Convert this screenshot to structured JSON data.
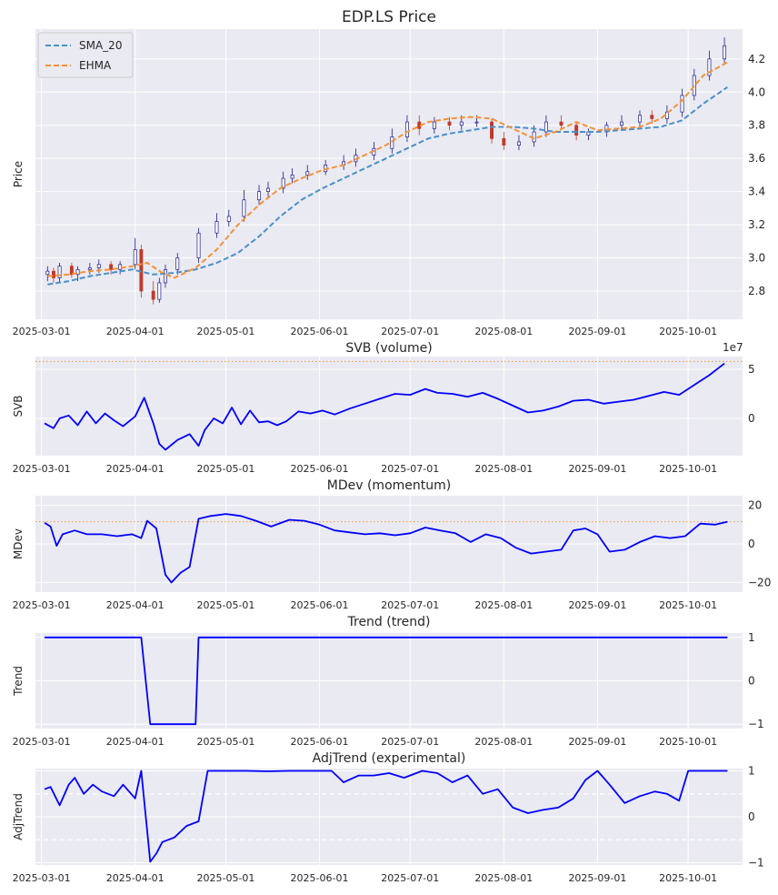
{
  "chart_data": [
    {
      "type": "line",
      "title": "EDP.LS Price",
      "ylabel": "Price",
      "xlabel": "",
      "x_ticks": [
        "2025-03-01",
        "2025-04-01",
        "2025-05-01",
        "2025-06-01",
        "2025-07-01",
        "2025-08-01",
        "2025-09-01",
        "2025-10-01"
      ],
      "y_ticks": [
        "2.8",
        "3.0",
        "3.2",
        "3.4",
        "3.6",
        "3.8",
        "4.0",
        "4.2"
      ],
      "ylim": [
        2.63,
        4.38
      ],
      "xlim": [
        "2025-02-27",
        "2025-10-19"
      ],
      "grid": true,
      "legend": "top-left",
      "candles": {
        "up_color": "#1a1a8c",
        "down_color": "#c0392b",
        "dates": [
          "2025-03-03",
          "2025-03-05",
          "2025-03-07",
          "2025-03-11",
          "2025-03-13",
          "2025-03-17",
          "2025-03-20",
          "2025-03-24",
          "2025-03-27",
          "2025-04-01",
          "2025-04-03",
          "2025-04-07",
          "2025-04-09",
          "2025-04-11",
          "2025-04-15",
          "2025-04-22",
          "2025-04-28",
          "2025-05-02",
          "2025-05-07",
          "2025-05-12",
          "2025-05-15",
          "2025-05-20",
          "2025-05-23",
          "2025-05-28",
          "2025-06-03",
          "2025-06-09",
          "2025-06-13",
          "2025-06-19",
          "2025-06-25",
          "2025-06-30",
          "2025-07-04",
          "2025-07-09",
          "2025-07-14",
          "2025-07-18",
          "2025-07-23",
          "2025-07-28",
          "2025-08-01",
          "2025-08-06",
          "2025-08-11",
          "2025-08-15",
          "2025-08-20",
          "2025-08-25",
          "2025-08-29",
          "2025-09-04",
          "2025-09-09",
          "2025-09-15",
          "2025-09-19",
          "2025-09-24",
          "2025-09-29",
          "2025-10-03",
          "2025-10-08",
          "2025-10-13"
        ],
        "open": [
          2.9,
          2.92,
          2.88,
          2.95,
          2.9,
          2.93,
          2.94,
          2.96,
          2.93,
          2.96,
          3.05,
          2.8,
          2.75,
          2.85,
          2.93,
          3.0,
          3.15,
          3.22,
          3.25,
          3.35,
          3.4,
          3.42,
          3.48,
          3.5,
          3.52,
          3.56,
          3.58,
          3.62,
          3.66,
          3.73,
          3.82,
          3.78,
          3.82,
          3.8,
          3.82,
          3.82,
          3.72,
          3.68,
          3.7,
          3.76,
          3.82,
          3.8,
          3.74,
          3.76,
          3.8,
          3.82,
          3.86,
          3.84,
          3.88,
          3.98,
          4.1,
          4.2
        ],
        "close": [
          2.92,
          2.88,
          2.95,
          2.9,
          2.93,
          2.94,
          2.96,
          2.93,
          2.96,
          3.05,
          2.8,
          2.75,
          2.85,
          2.93,
          3.0,
          3.15,
          3.22,
          3.25,
          3.35,
          3.4,
          3.42,
          3.48,
          3.5,
          3.52,
          3.56,
          3.58,
          3.62,
          3.66,
          3.73,
          3.82,
          3.78,
          3.82,
          3.8,
          3.82,
          3.82,
          3.72,
          3.68,
          3.7,
          3.76,
          3.82,
          3.8,
          3.74,
          3.76,
          3.8,
          3.82,
          3.86,
          3.84,
          3.88,
          3.98,
          4.1,
          4.2,
          4.28
        ],
        "high": [
          2.95,
          2.94,
          2.97,
          2.97,
          2.95,
          2.97,
          2.99,
          2.98,
          2.98,
          3.12,
          3.08,
          2.86,
          2.88,
          2.96,
          3.03,
          3.18,
          3.27,
          3.29,
          3.41,
          3.44,
          3.46,
          3.52,
          3.54,
          3.56,
          3.59,
          3.62,
          3.66,
          3.7,
          3.78,
          3.86,
          3.86,
          3.85,
          3.85,
          3.86,
          3.86,
          3.84,
          3.76,
          3.74,
          3.8,
          3.86,
          3.86,
          3.82,
          3.78,
          3.82,
          3.86,
          3.89,
          3.89,
          3.92,
          4.02,
          4.14,
          4.25,
          4.33
        ],
        "low": [
          2.86,
          2.85,
          2.85,
          2.88,
          2.86,
          2.9,
          2.91,
          2.9,
          2.9,
          2.93,
          2.76,
          2.72,
          2.73,
          2.82,
          2.9,
          2.97,
          3.12,
          3.19,
          3.22,
          3.32,
          3.37,
          3.39,
          3.45,
          3.47,
          3.5,
          3.53,
          3.55,
          3.59,
          3.63,
          3.7,
          3.74,
          3.75,
          3.77,
          3.77,
          3.79,
          3.69,
          3.65,
          3.65,
          3.67,
          3.73,
          3.77,
          3.71,
          3.71,
          3.73,
          3.77,
          3.79,
          3.81,
          3.81,
          3.85,
          3.95,
          4.07,
          4.17
        ]
      },
      "series": [
        {
          "name": "SMA_20",
          "color": "#4a90c8",
          "dash": true,
          "x": [
            "2025-03-03",
            "2025-03-10",
            "2025-03-17",
            "2025-03-24",
            "2025-03-31",
            "2025-04-07",
            "2025-04-14",
            "2025-04-21",
            "2025-04-28",
            "2025-05-05",
            "2025-05-12",
            "2025-05-19",
            "2025-05-26",
            "2025-06-02",
            "2025-06-09",
            "2025-06-16",
            "2025-06-23",
            "2025-06-30",
            "2025-07-07",
            "2025-07-14",
            "2025-07-21",
            "2025-07-28",
            "2025-08-04",
            "2025-08-11",
            "2025-08-18",
            "2025-08-25",
            "2025-09-01",
            "2025-09-08",
            "2025-09-15",
            "2025-09-22",
            "2025-09-29",
            "2025-10-06",
            "2025-10-14"
          ],
          "y": [
            2.84,
            2.86,
            2.89,
            2.91,
            2.93,
            2.9,
            2.91,
            2.93,
            2.97,
            3.03,
            3.13,
            3.25,
            3.35,
            3.42,
            3.48,
            3.54,
            3.6,
            3.66,
            3.72,
            3.75,
            3.77,
            3.79,
            3.79,
            3.78,
            3.76,
            3.76,
            3.76,
            3.77,
            3.78,
            3.79,
            3.83,
            3.93,
            4.03
          ]
        },
        {
          "name": "EHMA",
          "color": "#f39237",
          "dash": true,
          "x": [
            "2025-03-03",
            "2025-03-10",
            "2025-03-17",
            "2025-03-24",
            "2025-03-31",
            "2025-04-05",
            "2025-04-10",
            "2025-04-14",
            "2025-04-21",
            "2025-04-28",
            "2025-05-05",
            "2025-05-12",
            "2025-05-19",
            "2025-05-26",
            "2025-06-02",
            "2025-06-09",
            "2025-06-16",
            "2025-06-23",
            "2025-06-30",
            "2025-07-07",
            "2025-07-14",
            "2025-07-21",
            "2025-07-28",
            "2025-08-04",
            "2025-08-11",
            "2025-08-18",
            "2025-08-25",
            "2025-09-01",
            "2025-09-08",
            "2025-09-15",
            "2025-09-22",
            "2025-09-29",
            "2025-10-06",
            "2025-10-14"
          ],
          "y": [
            2.89,
            2.9,
            2.92,
            2.93,
            2.95,
            2.97,
            2.91,
            2.88,
            2.94,
            3.05,
            3.2,
            3.32,
            3.42,
            3.48,
            3.53,
            3.56,
            3.62,
            3.68,
            3.76,
            3.82,
            3.84,
            3.85,
            3.84,
            3.78,
            3.72,
            3.76,
            3.82,
            3.77,
            3.78,
            3.79,
            3.84,
            3.95,
            4.1,
            4.18
          ]
        }
      ]
    },
    {
      "type": "line",
      "title": "SVB (volume)",
      "ylabel": "SVB",
      "y_ticks": [
        "0",
        "5"
      ],
      "offset_text": "1e7",
      "ylim": [
        -3.8,
        6.3
      ],
      "grid": true,
      "reference_line": {
        "y": 5.8,
        "color": "#f39237",
        "style": "dotted"
      },
      "series": [
        {
          "name": "",
          "color": "#0000ff",
          "x": [
            "2025-03-02",
            "2025-03-05",
            "2025-03-07",
            "2025-03-10",
            "2025-03-13",
            "2025-03-16",
            "2025-03-19",
            "2025-03-22",
            "2025-03-25",
            "2025-03-28",
            "2025-04-01",
            "2025-04-04",
            "2025-04-07",
            "2025-04-09",
            "2025-04-11",
            "2025-04-15",
            "2025-04-19",
            "2025-04-22",
            "2025-04-24",
            "2025-04-27",
            "2025-04-30",
            "2025-05-03",
            "2025-05-06",
            "2025-05-09",
            "2025-05-12",
            "2025-05-15",
            "2025-05-18",
            "2025-05-21",
            "2025-05-25",
            "2025-05-29",
            "2025-06-02",
            "2025-06-06",
            "2025-06-11",
            "2025-06-16",
            "2025-06-21",
            "2025-06-26",
            "2025-07-01",
            "2025-07-06",
            "2025-07-10",
            "2025-07-15",
            "2025-07-20",
            "2025-07-25",
            "2025-07-30",
            "2025-08-04",
            "2025-08-09",
            "2025-08-14",
            "2025-08-19",
            "2025-08-24",
            "2025-08-29",
            "2025-09-03",
            "2025-09-08",
            "2025-09-13",
            "2025-09-18",
            "2025-09-23",
            "2025-09-28",
            "2025-10-03",
            "2025-10-08",
            "2025-10-13"
          ],
          "y": [
            -0.5,
            -1.0,
            0.0,
            0.3,
            -0.7,
            0.7,
            -0.5,
            0.5,
            -0.2,
            -0.8,
            0.2,
            2.1,
            -0.5,
            -2.6,
            -3.2,
            -2.2,
            -1.6,
            -2.8,
            -1.2,
            0.0,
            -0.5,
            1.1,
            -0.6,
            0.8,
            -0.4,
            -0.3,
            -0.7,
            -0.3,
            0.7,
            0.5,
            0.8,
            0.4,
            1.0,
            1.5,
            2.0,
            2.5,
            2.4,
            3.0,
            2.6,
            2.5,
            2.2,
            2.6,
            2.0,
            1.3,
            0.6,
            0.8,
            1.2,
            1.8,
            1.9,
            1.5,
            1.7,
            1.9,
            2.3,
            2.7,
            2.4,
            3.4,
            4.4,
            5.6
          ]
        }
      ]
    },
    {
      "type": "line",
      "title": "MDev (momentum)",
      "ylabel": "MDev",
      "y_ticks": [
        "−20",
        "0",
        "20"
      ],
      "ylim": [
        -25,
        25
      ],
      "grid": true,
      "reference_line": {
        "y": 11.5,
        "color": "#f39237",
        "style": "dotted"
      },
      "series": [
        {
          "name": "",
          "color": "#0000ff",
          "x": [
            "2025-03-02",
            "2025-03-04",
            "2025-03-06",
            "2025-03-08",
            "2025-03-12",
            "2025-03-16",
            "2025-03-21",
            "2025-03-26",
            "2025-03-31",
            "2025-04-03",
            "2025-04-05",
            "2025-04-08",
            "2025-04-11",
            "2025-04-13",
            "2025-04-16",
            "2025-04-19",
            "2025-04-22",
            "2025-04-26",
            "2025-05-01",
            "2025-05-06",
            "2025-05-11",
            "2025-05-16",
            "2025-05-22",
            "2025-05-27",
            "2025-06-01",
            "2025-06-06",
            "2025-06-11",
            "2025-06-16",
            "2025-06-21",
            "2025-06-26",
            "2025-07-01",
            "2025-07-06",
            "2025-07-11",
            "2025-07-16",
            "2025-07-21",
            "2025-07-26",
            "2025-07-31",
            "2025-08-05",
            "2025-08-10",
            "2025-08-15",
            "2025-08-20",
            "2025-08-24",
            "2025-08-28",
            "2025-09-01",
            "2025-09-05",
            "2025-09-10",
            "2025-09-15",
            "2025-09-20",
            "2025-09-25",
            "2025-09-30",
            "2025-10-05",
            "2025-10-10",
            "2025-10-14"
          ],
          "y": [
            11,
            9,
            -1,
            5,
            7,
            5,
            5,
            4,
            5,
            3,
            12,
            8,
            -16,
            -20,
            -15,
            -12,
            13,
            14.5,
            15.5,
            14.5,
            12,
            9,
            12.5,
            12,
            10,
            7,
            6,
            5,
            5.5,
            4.5,
            5.5,
            8.5,
            7,
            5.5,
            1,
            5,
            3,
            -2,
            -5,
            -4,
            -3,
            7,
            8,
            5,
            -4,
            -3,
            1,
            4,
            3,
            4,
            10.5,
            10,
            11.5
          ]
        }
      ]
    },
    {
      "type": "line",
      "title": "Trend (trend)",
      "ylabel": "Trend",
      "y_ticks": [
        "−1",
        "0",
        "1"
      ],
      "ylim": [
        -1.1,
        1.1
      ],
      "grid": true,
      "series": [
        {
          "name": "",
          "color": "#0000ff",
          "x": [
            "2025-03-02",
            "2025-04-03",
            "2025-04-06",
            "2025-04-21",
            "2025-04-22",
            "2025-10-14"
          ],
          "y": [
            1,
            1,
            -1,
            -1,
            1,
            1
          ]
        }
      ]
    },
    {
      "type": "line",
      "title": "AdjTrend (experimental)",
      "ylabel": "AdjTrend",
      "y_ticks": [
        "−1",
        "0",
        "1"
      ],
      "ylim": [
        -1.05,
        1.05
      ],
      "grid": true,
      "reference_lines": [
        {
          "y": 0.5,
          "color": "#ffffff",
          "style": "dashed"
        },
        {
          "y": -0.5,
          "color": "#ffffff",
          "style": "dashed"
        }
      ],
      "series": [
        {
          "name": "",
          "color": "#0000ff",
          "x": [
            "2025-03-02",
            "2025-03-04",
            "2025-03-07",
            "2025-03-10",
            "2025-03-12",
            "2025-03-15",
            "2025-03-18",
            "2025-03-21",
            "2025-03-25",
            "2025-03-28",
            "2025-04-01",
            "2025-04-03",
            "2025-04-06",
            "2025-04-08",
            "2025-04-10",
            "2025-04-14",
            "2025-04-18",
            "2025-04-22",
            "2025-04-25",
            "2025-05-01",
            "2025-05-08",
            "2025-05-15",
            "2025-05-22",
            "2025-05-29",
            "2025-06-05",
            "2025-06-09",
            "2025-06-14",
            "2025-06-19",
            "2025-06-24",
            "2025-06-29",
            "2025-07-05",
            "2025-07-10",
            "2025-07-15",
            "2025-07-20",
            "2025-07-25",
            "2025-07-30",
            "2025-08-04",
            "2025-08-09",
            "2025-08-14",
            "2025-08-19",
            "2025-08-24",
            "2025-08-28",
            "2025-09-01",
            "2025-09-05",
            "2025-09-10",
            "2025-09-15",
            "2025-09-20",
            "2025-09-24",
            "2025-09-28",
            "2025-10-01",
            "2025-10-05",
            "2025-10-10",
            "2025-10-14"
          ],
          "y": [
            0.6,
            0.65,
            0.25,
            0.7,
            0.85,
            0.5,
            0.7,
            0.55,
            0.45,
            0.7,
            0.4,
            1.0,
            -0.98,
            -0.8,
            -0.55,
            -0.45,
            -0.2,
            -0.1,
            1.0,
            1.0,
            1.0,
            0.99,
            1.0,
            1.0,
            1.0,
            0.75,
            0.9,
            0.9,
            0.95,
            0.85,
            1.0,
            0.95,
            0.75,
            0.9,
            0.5,
            0.6,
            0.2,
            0.08,
            0.15,
            0.2,
            0.4,
            0.8,
            1.0,
            0.7,
            0.3,
            0.45,
            0.55,
            0.5,
            0.35,
            1.0,
            1.0,
            1.0,
            1.0
          ]
        }
      ]
    }
  ]
}
